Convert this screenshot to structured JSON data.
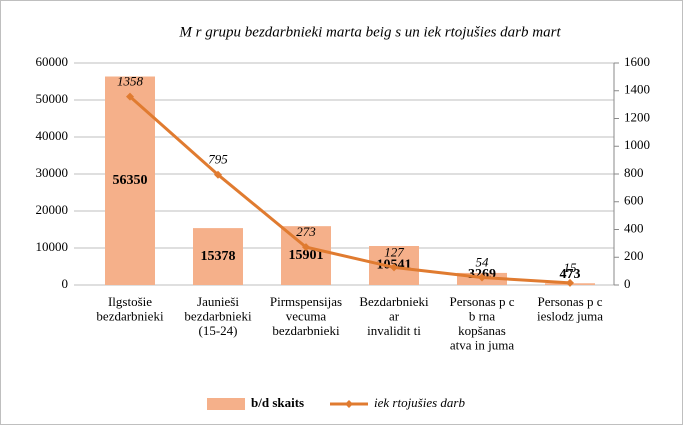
{
  "chart_data": {
    "type": "bar-line",
    "title": "M r grupu bezdarbnieki marta beig s un iek rtojušies darb mart",
    "categories": [
      [
        "Ilgstošie",
        "bezdarbnieki"
      ],
      [
        "Jaunieši",
        "bezdarbnieki",
        "(15-24)"
      ],
      [
        "Pirmspensijas",
        "vecuma",
        "bezdarbnieki"
      ],
      [
        "Bezdarbnieki",
        "ar",
        "invalidit ti"
      ],
      [
        "Personas p c",
        "b rna",
        "kopšanas",
        "atva in juma"
      ],
      [
        "Personas p c",
        "ieslodz juma"
      ]
    ],
    "series": [
      {
        "name": "b/d skaits",
        "type": "bar",
        "color": "#f5b08a",
        "values": [
          56350,
          15378,
          15901,
          10541,
          3269,
          473
        ]
      },
      {
        "name": "iek rtojušies darb",
        "type": "line",
        "axis": "y2",
        "color": "#e07b30",
        "values": [
          1358,
          795,
          273,
          127,
          54,
          15
        ]
      }
    ],
    "ylim": [
      0,
      60000
    ],
    "yticks": [
      0,
      10000,
      20000,
      30000,
      40000,
      50000,
      60000
    ],
    "y2lim": [
      0,
      1600
    ],
    "y2ticks": [
      0,
      200,
      400,
      600,
      800,
      1000,
      1200,
      1400,
      1600
    ],
    "grid": true,
    "legend": "bottom"
  }
}
